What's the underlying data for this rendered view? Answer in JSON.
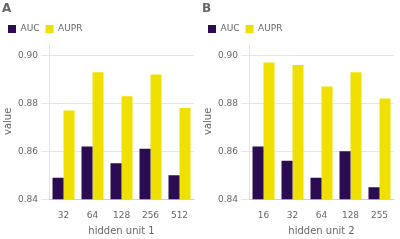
{
  "chart_data": [
    {
      "type": "bar",
      "title": "A",
      "xlabel": "hidden unit 1",
      "ylabel": "value",
      "categories": [
        "32",
        "64",
        "128",
        "256",
        "512"
      ],
      "series": [
        {
          "name": "AUC",
          "color": "#2b0c52",
          "values": [
            0.849,
            0.862,
            0.855,
            0.861,
            0.85
          ]
        },
        {
          "name": "AUPR",
          "color": "#f0e000",
          "values": [
            0.877,
            0.893,
            0.883,
            0.892,
            0.878
          ]
        }
      ],
      "ylim": [
        0.84,
        0.905
      ],
      "yticks": [
        0.84,
        0.86,
        0.88,
        {
          "value": 0.9,
          "label": "0.90"
        }
      ],
      "grid": true,
      "legend": "upper left"
    },
    {
      "type": "bar",
      "title": "B",
      "xlabel": "hidden unit 2",
      "ylabel": "value",
      "categories": [
        "16",
        "32",
        "64",
        "128",
        "255"
      ],
      "series": [
        {
          "name": "AUC",
          "color": "#2b0c52",
          "values": [
            0.862,
            0.856,
            0.849,
            0.86,
            0.845
          ]
        },
        {
          "name": "AUPR",
          "color": "#f0e000",
          "values": [
            0.897,
            0.896,
            0.887,
            0.893,
            0.882
          ]
        }
      ],
      "ylim": [
        0.84,
        0.905
      ],
      "yticks": [
        0.84,
        0.86,
        0.88,
        {
          "value": 0.9,
          "label": "0.90"
        }
      ],
      "grid": true,
      "legend": "upper left"
    }
  ]
}
